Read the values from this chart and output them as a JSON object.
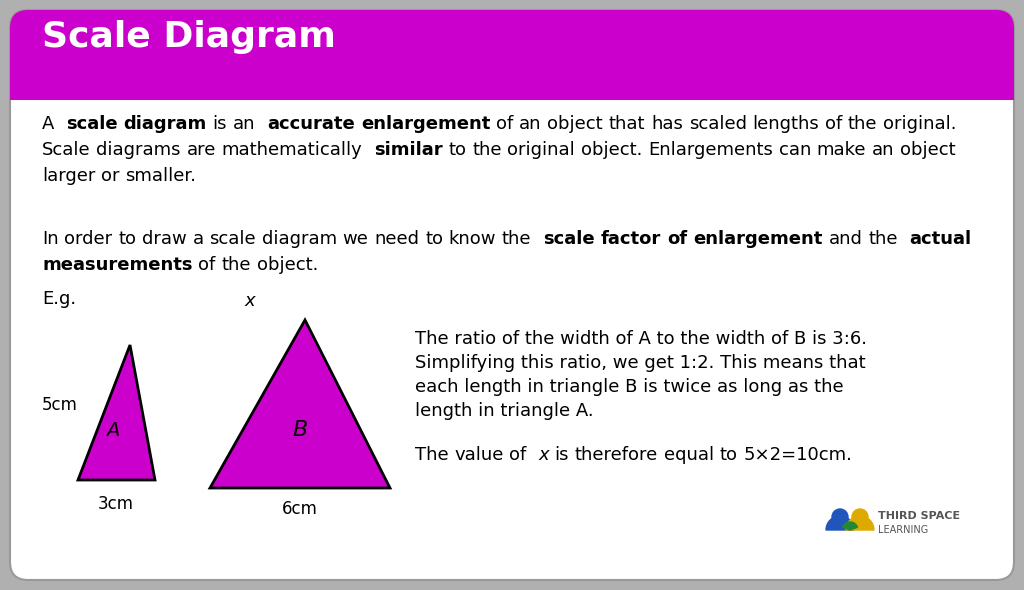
{
  "title": "Scale Diagram",
  "title_bg_color": "#CC00CC",
  "title_text_color": "#FFFFFF",
  "body_bg_color": "#FFFFFF",
  "card_bg_color": "#FFFFFF",
  "border_color": "#CCCCCC",
  "triangle_fill_color": "#CC00CC",
  "triangle_edge_color": "#000000",
  "para1_parts": [
    {
      "text": "A ",
      "bold": false
    },
    {
      "text": "scale diagram",
      "bold": true
    },
    {
      "text": " is an ",
      "bold": false
    },
    {
      "text": "accurate enlargement",
      "bold": true
    },
    {
      "text": " of an object that has scaled lengths of the original. Scale\ndiagrams are mathematically ",
      "bold": false
    },
    {
      "text": "similar",
      "bold": true
    },
    {
      "text": " to the original object. Enlargements can make an object larger or\nsmaller.",
      "bold": false
    }
  ],
  "para2_parts": [
    {
      "text": "In order to draw a scale diagram we need to know the ",
      "bold": false
    },
    {
      "text": "scale factor of enlargement",
      "bold": true
    },
    {
      "text": " and the ",
      "bold": false
    },
    {
      "text": "actual\nmeasurements",
      "bold": true
    },
    {
      "text": " of the object.",
      "bold": false
    }
  ],
  "eg_text": "E.g.",
  "small_triangle_label": "A",
  "large_triangle_label": "B",
  "small_triangle_side": "5cm",
  "small_triangle_base": "3cm",
  "large_triangle_top": "x",
  "large_triangle_base": "6cm",
  "explanation_line1": "The ratio of the width of A to the width of B is 3:6.",
  "explanation_line2": "Simplifying this ratio, we get 1:2. This means that",
  "explanation_line3": "each length in triangle B is twice as long as the",
  "explanation_line4": "length in triangle A.",
  "explanation_line5": "The value of ",
  "explanation_line5_italic": "x",
  "explanation_line5_rest": " is therefore equal to 5×2=10cm.",
  "font_size_body": 13,
  "font_size_title": 26
}
